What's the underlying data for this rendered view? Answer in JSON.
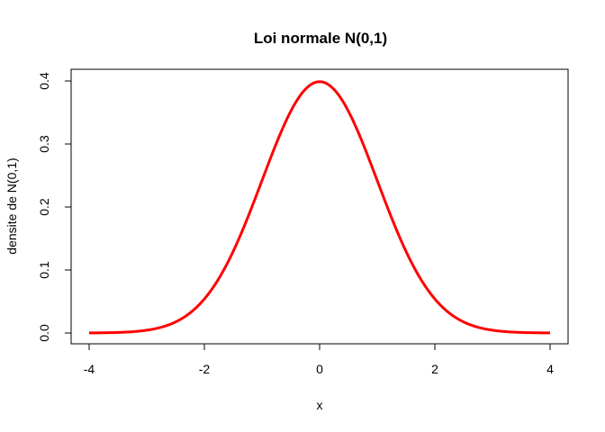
{
  "chart_data": {
    "type": "line",
    "title": "Loi normale N(0,1)",
    "xlabel": "x",
    "ylabel": "densite de N(0,1)",
    "xlim": [
      -4,
      4
    ],
    "ylim": [
      0,
      0.4
    ],
    "x_ticks": [
      "-4",
      "-2",
      "0",
      "2",
      "4"
    ],
    "y_ticks": [
      "0.0",
      "0.1",
      "0.2",
      "0.3",
      "0.4"
    ],
    "grid": false,
    "legend": "none",
    "series": [
      {
        "color": "#ff0000",
        "x": [
          -4,
          -3.5,
          -3,
          -2.5,
          -2,
          -1.5,
          -1,
          -0.5,
          0,
          0.5,
          1,
          1.5,
          2,
          2.5,
          3,
          3.5,
          4
        ],
        "y": [
          0.0001,
          0.0009,
          0.0044,
          0.0175,
          0.054,
          0.1295,
          0.242,
          0.3521,
          0.3989,
          0.3521,
          0.242,
          0.1295,
          0.054,
          0.0175,
          0.0044,
          0.0009,
          0.0001
        ]
      }
    ]
  }
}
